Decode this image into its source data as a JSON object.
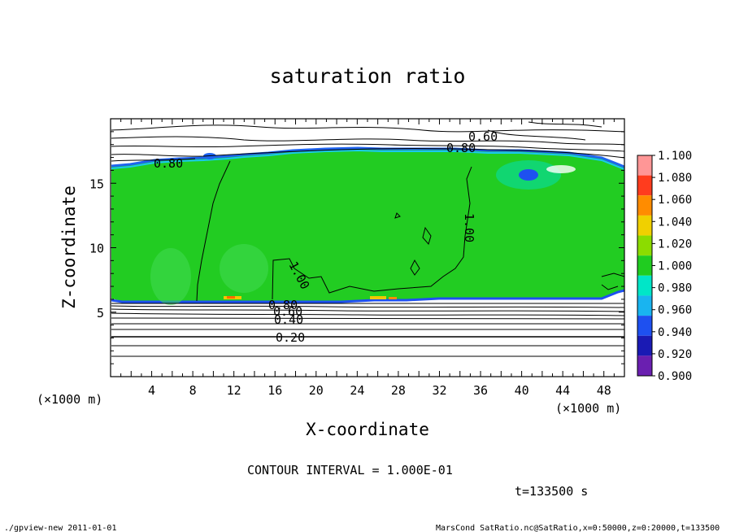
{
  "chart_data": {
    "type": "heatmap",
    "title": "saturation ratio",
    "xlabel": "X-coordinate",
    "ylabel": "Z-coordinate",
    "x_unit": "(×1000 m)",
    "x_unit_bottom": "(×1000 m)",
    "xlim": [
      0,
      50
    ],
    "ylim": [
      0,
      20
    ],
    "xticks": [
      4,
      8,
      12,
      16,
      20,
      24,
      28,
      32,
      36,
      40,
      44,
      48
    ],
    "yticks": [
      5,
      10,
      15
    ],
    "colorbar": {
      "levels": [
        0.9,
        0.92,
        0.94,
        0.96,
        0.98,
        1.0,
        1.02,
        1.04,
        1.06,
        1.08,
        1.1
      ],
      "labels": [
        "0.900",
        "0.920",
        "0.940",
        "0.960",
        "0.980",
        "1.000",
        "1.020",
        "1.040",
        "1.060",
        "1.080",
        "1.100"
      ],
      "colors": [
        "#6a1fb0",
        "#1a1ab4",
        "#1e50f0",
        "#19b4f0",
        "#00e6c8",
        "#20cc20",
        "#8cdc00",
        "#f0d000",
        "#ff8c00",
        "#ff3c1e",
        "#ff9696"
      ]
    },
    "contour_labels": [
      "0.60",
      "0.80",
      "0.80",
      "1.00",
      "1.00",
      "0.80",
      "0.60",
      "0.40",
      "0.20"
    ],
    "domain": {
      "cloud_layer_z": [
        5.8,
        16.3
      ],
      "value_inside": 1.0
    },
    "contour_interval": "CONTOUR INTERVAL = 1.000E-01",
    "time_label": "t=133500 s"
  },
  "footer": {
    "left": "./gpview-new   2011-01-01",
    "right": "MarsCond_SatRatio.nc@SatRatio,x=0:50000,z=0:20000,t=133500"
  }
}
